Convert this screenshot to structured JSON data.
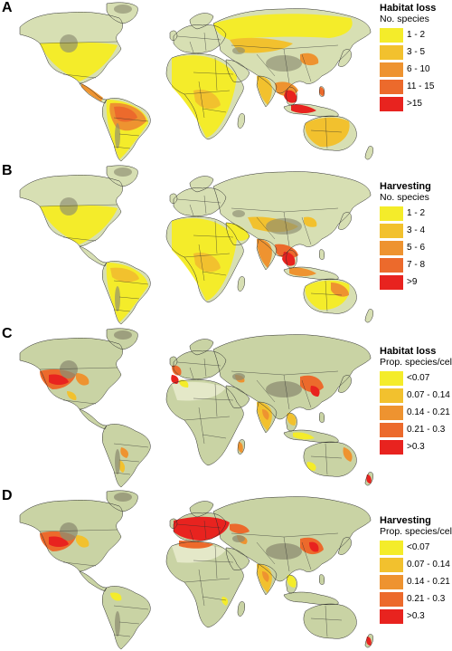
{
  "panels": [
    {
      "letter": "A",
      "legend_title": "Habitat loss",
      "legend_subtitle": "No. species",
      "classes": [
        {
          "label": "1 - 2",
          "color": "#f4ec2a"
        },
        {
          "label": "3 - 5",
          "color": "#f2c12e"
        },
        {
          "label": "6 - 10",
          "color": "#ee9330"
        },
        {
          "label": "11 - 15",
          "color": "#ec6a2c"
        },
        {
          "label": ">15",
          "color": "#e8231f"
        }
      ]
    },
    {
      "letter": "B",
      "legend_title": "Harvesting",
      "legend_subtitle": "No. species",
      "classes": [
        {
          "label": "1 - 2",
          "color": "#f4ec2a"
        },
        {
          "label": "3 - 4",
          "color": "#f2c12e"
        },
        {
          "label": "5 - 6",
          "color": "#ee9330"
        },
        {
          "label": "7 - 8",
          "color": "#ec6a2c"
        },
        {
          "label": ">9",
          "color": "#e8231f"
        }
      ]
    },
    {
      "letter": "C",
      "legend_title": "Habitat loss",
      "legend_subtitle": "Prop. species/cell",
      "classes": [
        {
          "label": "<0.07",
          "color": "#f4ec2a"
        },
        {
          "label": "0.07 - 0.14",
          "color": "#f2c12e"
        },
        {
          "label": "0.14 - 0.21",
          "color": "#ee9330"
        },
        {
          "label": "0.21 - 0.3",
          "color": "#ec6a2c"
        },
        {
          "label": ">0.3",
          "color": "#e8231f"
        }
      ]
    },
    {
      "letter": "D",
      "legend_title": "Harvesting",
      "legend_subtitle": "Prop. species/cell",
      "classes": [
        {
          "label": "<0.07",
          "color": "#f4ec2a"
        },
        {
          "label": "0.07 - 0.14",
          "color": "#f2c12e"
        },
        {
          "label": "0.14 - 0.21",
          "color": "#ee9330"
        },
        {
          "label": "0.21 - 0.3",
          "color": "#ec6a2c"
        },
        {
          "label": ">0.3",
          "color": "#e8231f"
        }
      ]
    }
  ],
  "colors": {
    "land_base": "#d7dfb3",
    "land_mid": "#b8c49a",
    "forest": "#a7b386",
    "desert_light": "#e4e8c8",
    "mountain": "#8d8d72",
    "ice": "#c8c9b8",
    "border": "#2d2d2d",
    "ocean": "#ffffff"
  }
}
